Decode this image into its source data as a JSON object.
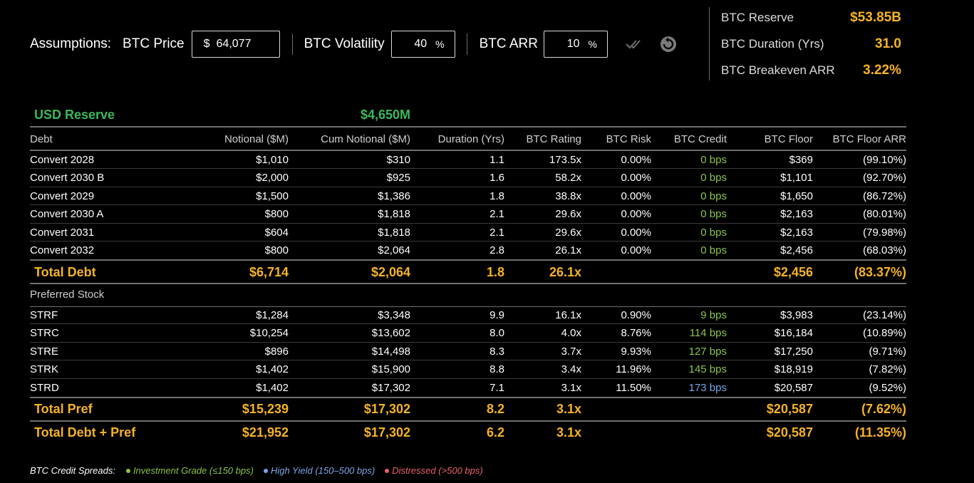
{
  "assumptions": {
    "label": "Assumptions:",
    "btc_price": {
      "label": "BTC Price",
      "prefix": "$",
      "value": "64,077"
    },
    "btc_volatility": {
      "label": "BTC Volatility",
      "value": "40",
      "suffix": "%"
    },
    "btc_arr": {
      "label": "BTC ARR",
      "value": "10",
      "suffix": "%"
    },
    "icons": [
      "double-check-icon",
      "reset-icon"
    ]
  },
  "summary": [
    {
      "label": "BTC Reserve",
      "value": "$53.85B"
    },
    {
      "label": "BTC Duration (Yrs)",
      "value": "31.0"
    },
    {
      "label": "BTC Breakeven ARR",
      "value": "3.22%"
    }
  ],
  "usd_reserve": {
    "label": "USD Reserve",
    "value": "$4,650M"
  },
  "columns": [
    "Debt",
    "Notional ($M)",
    "Cum Notional ($M)",
    "Duration (Yrs)",
    "BTC Rating",
    "BTC Risk",
    "BTC Credit",
    "BTC Floor",
    "BTC Floor ARR"
  ],
  "debt_rows": [
    {
      "name": "Convert 2028",
      "notional": "$1,010",
      "cum": "$310",
      "dur": "1.1",
      "rating": "173.5x",
      "risk": "0.00%",
      "credit": "0 bps",
      "floor": "$369",
      "farr": "(99.10%)"
    },
    {
      "name": "Convert 2030 B",
      "notional": "$2,000",
      "cum": "$925",
      "dur": "1.6",
      "rating": "58.2x",
      "risk": "0.00%",
      "credit": "0 bps",
      "floor": "$1,101",
      "farr": "(92.70%)"
    },
    {
      "name": "Convert 2029",
      "notional": "$1,500",
      "cum": "$1,386",
      "dur": "1.8",
      "rating": "38.8x",
      "risk": "0.00%",
      "credit": "0 bps",
      "floor": "$1,650",
      "farr": "(86.72%)"
    },
    {
      "name": "Convert 2030 A",
      "notional": "$800",
      "cum": "$1,818",
      "dur": "2.1",
      "rating": "29.6x",
      "risk": "0.00%",
      "credit": "0 bps",
      "floor": "$2,163",
      "farr": "(80.01%)"
    },
    {
      "name": "Convert 2031",
      "notional": "$604",
      "cum": "$1,818",
      "dur": "2.1",
      "rating": "29.6x",
      "risk": "0.00%",
      "credit": "0 bps",
      "floor": "$2,163",
      "farr": "(79.98%)"
    },
    {
      "name": "Convert 2032",
      "notional": "$800",
      "cum": "$2,064",
      "dur": "2.8",
      "rating": "26.1x",
      "risk": "0.00%",
      "credit": "0 bps",
      "floor": "$2,456",
      "farr": "(68.03%)"
    }
  ],
  "total_debt": {
    "name": "Total Debt",
    "notional": "$6,714",
    "cum": "$2,064",
    "dur": "1.8",
    "rating": "26.1x",
    "floor": "$2,456",
    "farr": "(83.37%)"
  },
  "pref_label": "Preferred Stock",
  "pref_rows": [
    {
      "name": "STRF",
      "notional": "$1,284",
      "cum": "$3,348",
      "dur": "9.9",
      "rating": "16.1x",
      "risk": "0.90%",
      "credit": "9 bps",
      "floor": "$3,983",
      "farr": "(23.14%)"
    },
    {
      "name": "STRC",
      "notional": "$10,254",
      "cum": "$13,602",
      "dur": "8.0",
      "rating": "4.0x",
      "risk": "8.76%",
      "credit": "114 bps",
      "floor": "$16,184",
      "farr": "(10.89%)"
    },
    {
      "name": "STRE",
      "notional": "$896",
      "cum": "$14,498",
      "dur": "8.3",
      "rating": "3.7x",
      "risk": "9.93%",
      "credit": "127 bps",
      "floor": "$17,250",
      "farr": "(9.71%)"
    },
    {
      "name": "STRK",
      "notional": "$1,402",
      "cum": "$15,900",
      "dur": "8.8",
      "rating": "3.4x",
      "risk": "11.96%",
      "credit": "145 bps",
      "floor": "$18,919",
      "farr": "(7.82%)"
    },
    {
      "name": "STRD",
      "notional": "$1,402",
      "cum": "$17,302",
      "dur": "7.1",
      "rating": "3.1x",
      "risk": "11.50%",
      "credit": "173 bps",
      "floor": "$20,587",
      "farr": "(9.52%)"
    }
  ],
  "total_pref": {
    "name": "Total Pref",
    "notional": "$15,239",
    "cum": "$17,302",
    "dur": "8.2",
    "rating": "3.1x",
    "floor": "$20,587",
    "farr": "(7.62%)"
  },
  "total_all": {
    "name": "Total Debt + Pref",
    "notional": "$21,952",
    "cum": "$17,302",
    "dur": "6.2",
    "rating": "3.1x",
    "floor": "$20,587",
    "farr": "(11.35%)"
  },
  "legend": {
    "title": "BTC Credit Spreads:",
    "items": [
      {
        "label": "Investment Grade (≤150 bps)",
        "color": "#8bc34a"
      },
      {
        "label": "High Yield (150–500 bps)",
        "color": "#7ba6e6"
      },
      {
        "label": "Distressed (>500 bps)",
        "color": "#e8616b"
      }
    ]
  },
  "colors": {
    "accent": "#f5b324",
    "green": "#3cb85a",
    "investment_grade": "#8bc34a",
    "high_yield": "#7ba6e6",
    "distressed": "#e8616b"
  }
}
